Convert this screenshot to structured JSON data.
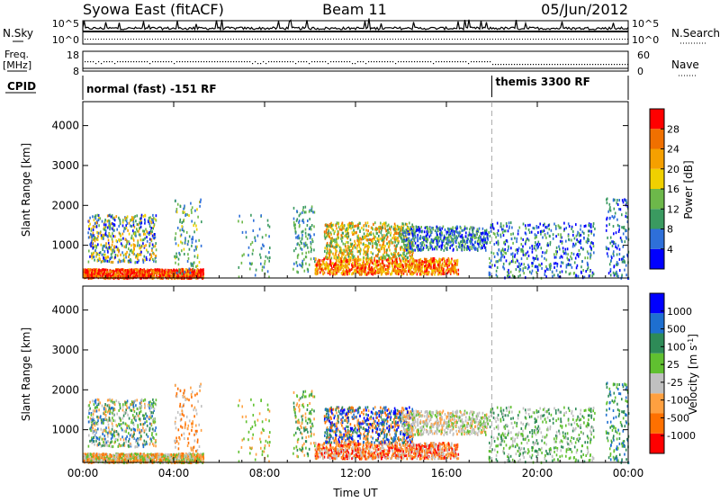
{
  "header": {
    "station": "Syowa East (fitACF)",
    "beam": "Beam 11",
    "date": "05/Jun/2012"
  },
  "strips": {
    "nsky_label": "N.Sky",
    "nsky_top": "10^5",
    "nsky_bottom": "10^0",
    "nsearch_label": "N.Search",
    "nsearch_top": "10^5",
    "nsearch_bottom": "10^0",
    "freq_label": "Freq.",
    "freq_unit": "[MHz]",
    "freq_top": "18",
    "freq_bottom": "8",
    "nave_label": "Nave",
    "nave_top": "60",
    "nave_bottom": "0",
    "cpid_label": "CPID",
    "cpid_modes": [
      {
        "name": "normal (fast) -151 RF",
        "start_hour": 0
      },
      {
        "name": "themis 3300 RF",
        "start_hour": 18
      }
    ]
  },
  "colors": {
    "power": [
      "#0000ff",
      "#2e6fd9",
      "#3a9a60",
      "#6db84a",
      "#f0d000",
      "#f5a000",
      "#f07000",
      "#ff0000"
    ],
    "velocity": [
      "#ff0000",
      "#ff7000",
      "#ffa040",
      "#c0c0c0",
      "#60c030",
      "#2e8b57",
      "#1e6fd0",
      "#0000ff"
    ]
  },
  "chart_data": [
    {
      "type": "heatmap",
      "ylabel": "Slant Range [km]",
      "xlabel": "",
      "xlim": [
        0,
        24
      ],
      "ylim": [
        180,
        4600
      ],
      "x_ticks": [
        "00:00",
        "04:00",
        "08:00",
        "12:00",
        "16:00",
        "20:00",
        "00:00"
      ],
      "y_ticks": [
        1000,
        2000,
        3000,
        4000
      ],
      "colorbar": {
        "label": "Power [dB]",
        "ticks": [
          "4",
          "8",
          "12",
          "16",
          "20",
          "24",
          "28"
        ],
        "range": [
          0,
          30
        ]
      }
    },
    {
      "type": "heatmap",
      "ylabel": "Slant Range [km]",
      "xlabel": "Time UT",
      "xlim": [
        0,
        24
      ],
      "ylim": [
        180,
        4600
      ],
      "x_ticks": [
        "00:00",
        "04:00",
        "08:00",
        "12:00",
        "16:00",
        "20:00",
        "00:00"
      ],
      "y_ticks": [
        1000,
        2000,
        3000,
        4000
      ],
      "colorbar": {
        "label": "Velocity [m s^-1]",
        "ticks": [
          "-1000",
          "-500",
          "-100",
          "-25",
          "25",
          "100",
          "500",
          "1000"
        ]
      }
    }
  ]
}
